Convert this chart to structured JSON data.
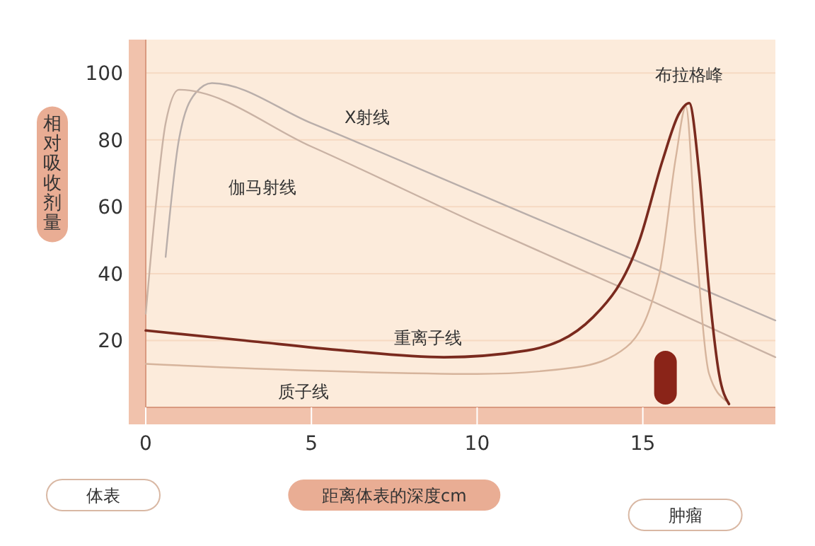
{
  "chart_data": {
    "type": "line",
    "xlabel": "距离体表的深度cm",
    "ylabel": "相对吸收剂量",
    "xlim": [
      0,
      19
    ],
    "xticks": [
      0,
      5,
      10,
      15
    ],
    "ylim": [
      0,
      110
    ],
    "yticks": [
      20,
      40,
      60,
      80,
      100
    ],
    "grid": "y",
    "marker": "none",
    "line_style": "solid",
    "series": [
      {
        "name": "X射线",
        "color": "#b9aeaa",
        "x": [
          0.6,
          1.0,
          1.5,
          2.0,
          5,
          10,
          15,
          19
        ],
        "values": [
          45,
          80,
          94,
          97,
          85,
          64,
          43,
          26
        ]
      },
      {
        "name": "伽马射线",
        "color": "#c9b2a4",
        "x": [
          0,
          0.3,
          0.6,
          1.0,
          5,
          10,
          15,
          19
        ],
        "values": [
          28,
          60,
          85,
          95,
          78,
          55,
          33,
          15
        ]
      },
      {
        "name": "质子线",
        "color": "#d6b49c",
        "x": [
          0,
          5,
          10,
          13,
          14.5,
          15.5,
          16.0,
          16.3,
          16.6,
          17.0,
          17.5
        ],
        "values": [
          13,
          11,
          10,
          12,
          18,
          40,
          75,
          90,
          50,
          10,
          2
        ]
      },
      {
        "name": "重离子线",
        "color": "#7a2a1e",
        "x": [
          0,
          3,
          6,
          9,
          11.5,
          13.5,
          14.9,
          15.6,
          16.1,
          16.4,
          16.7,
          17.0,
          17.3,
          17.6
        ],
        "values": [
          23,
          20,
          17,
          15,
          17,
          27,
          50,
          74,
          88,
          91,
          70,
          35,
          10,
          1
        ]
      }
    ],
    "annotations": [
      {
        "text": "布拉格峰",
        "x": 16.4,
        "y": 91
      },
      "体表",
      "肿瘤"
    ]
  }
}
